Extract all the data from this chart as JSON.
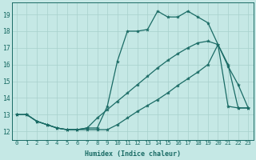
{
  "xlabel": "Humidex (Indice chaleur)",
  "xlim": [
    -0.5,
    23.5
  ],
  "ylim": [
    11.5,
    19.7
  ],
  "xticks": [
    0,
    1,
    2,
    3,
    4,
    5,
    6,
    7,
    8,
    9,
    10,
    11,
    12,
    13,
    14,
    15,
    16,
    17,
    18,
    19,
    20,
    21,
    22,
    23
  ],
  "yticks": [
    12,
    13,
    14,
    15,
    16,
    17,
    18,
    19
  ],
  "bg_color": "#c5e8e5",
  "line_color": "#1a6b65",
  "grid_color": "#a8d0cc",
  "line1_x": [
    0,
    1,
    2,
    3,
    4,
    5,
    6,
    7,
    8,
    9,
    10,
    11,
    12,
    13,
    14,
    15,
    16,
    17,
    18,
    19,
    20,
    21,
    22,
    23
  ],
  "line1_y": [
    13.0,
    13.0,
    12.6,
    12.4,
    12.2,
    12.1,
    12.1,
    12.2,
    12.2,
    13.5,
    16.2,
    18.0,
    18.0,
    18.1,
    19.2,
    18.85,
    18.85,
    19.2,
    18.85,
    18.5,
    17.2,
    15.9,
    14.8,
    13.4
  ],
  "line2_x": [
    0,
    1,
    2,
    3,
    4,
    5,
    6,
    7,
    8,
    9,
    10,
    11,
    12,
    13,
    14,
    15,
    16,
    17,
    18,
    19,
    20,
    21,
    22,
    23
  ],
  "line2_y": [
    13.0,
    13.0,
    12.6,
    12.4,
    12.2,
    12.1,
    12.1,
    12.2,
    12.8,
    13.3,
    13.8,
    14.3,
    14.8,
    15.3,
    15.8,
    16.25,
    16.65,
    17.0,
    17.3,
    17.4,
    17.2,
    16.0,
    13.4,
    13.4
  ],
  "line3_x": [
    0,
    1,
    2,
    3,
    4,
    5,
    6,
    7,
    8,
    9,
    10,
    11,
    12,
    13,
    14,
    15,
    16,
    17,
    18,
    19,
    20,
    21,
    22,
    23
  ],
  "line3_y": [
    13.0,
    13.0,
    12.6,
    12.4,
    12.2,
    12.1,
    12.1,
    12.1,
    12.1,
    12.1,
    12.4,
    12.8,
    13.2,
    13.55,
    13.9,
    14.3,
    14.75,
    15.15,
    15.55,
    16.0,
    17.2,
    13.5,
    13.4,
    13.4
  ]
}
